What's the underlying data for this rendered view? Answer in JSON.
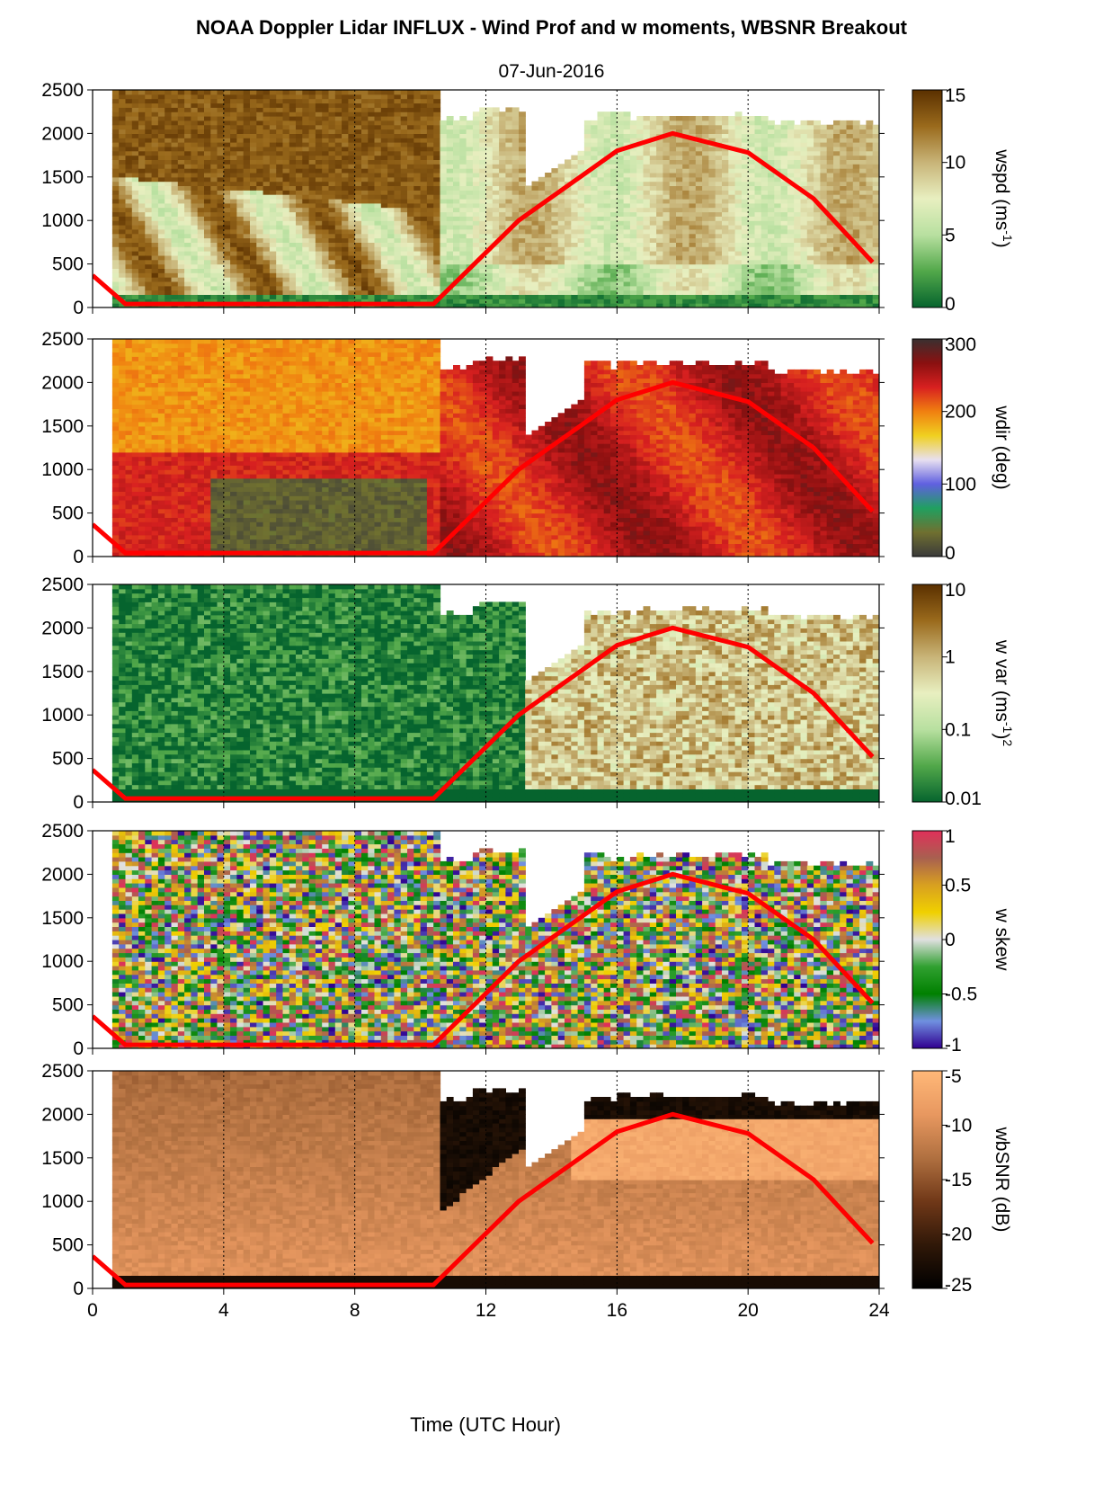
{
  "title": "NOAA Doppler Lidar INFLUX - Wind Prof and w moments, WBSNR Breakout",
  "subtitle": "07-Jun-2016",
  "chart_data": {
    "type": "heatmap",
    "xlabel": "Time (UTC Hour)",
    "xlim": [
      0,
      24
    ],
    "x_ticks": [
      "0",
      "4",
      "8",
      "12",
      "16",
      "20",
      "24"
    ],
    "y_ticks": [
      "0",
      "500",
      "1000",
      "1500",
      "2000",
      "2500"
    ],
    "ylim": [
      0,
      2500
    ],
    "grid": "dotted vertical lines every 4 hours",
    "overlay_line": {
      "color": "#ff0000",
      "description_points": [
        [
          0,
          370
        ],
        [
          1,
          40
        ],
        [
          10.4,
          40
        ],
        [
          13,
          1000
        ],
        [
          16,
          1800
        ],
        [
          17.7,
          2000
        ],
        [
          20,
          1780
        ],
        [
          22,
          1250
        ],
        [
          23.8,
          520
        ]
      ]
    },
    "panels": [
      {
        "colorbar_label": "wspd (ms",
        "colorbar_label_sup": "-1",
        "colorbar_label_end": ")",
        "colorbar_ticks": [
          "15",
          "10",
          "5",
          "0"
        ],
        "colormap": [
          "#5a3000",
          "#9a6a1c",
          "#c8b478",
          "#e8efc0",
          "#b8e0a0",
          "#52a84a",
          "#06642e"
        ]
      },
      {
        "colorbar_label": "wdir (deg)",
        "colorbar_label_sup": "",
        "colorbar_label_end": "",
        "colorbar_ticks": [
          "300",
          "200",
          "100",
          "0"
        ],
        "colormap": [
          "#3a3030",
          "#8a1010",
          "#d82020",
          "#f08010",
          "#f0d020",
          "#e8e0f0",
          "#6060e0",
          "#20a060",
          "#707030",
          "#3a3a3a"
        ]
      },
      {
        "colorbar_label": "w var (ms",
        "colorbar_label_sup": "-1",
        "colorbar_label_end": ")",
        "colorbar_label_sup2": "2",
        "colorbar_ticks": [
          "10",
          "1",
          "0.1",
          "0.01"
        ],
        "colormap": [
          "#5a3000",
          "#9a6a1c",
          "#c8b478",
          "#e8efc0",
          "#b8e0a0",
          "#52a84a",
          "#06642e"
        ]
      },
      {
        "colorbar_label": "w skew",
        "colorbar_label_sup": "",
        "colorbar_label_end": "",
        "colorbar_ticks": [
          "1",
          "0.5",
          "0",
          "-0.5",
          "-1"
        ],
        "colormap": [
          "#e0305a",
          "#a86050",
          "#d8a020",
          "#f0d000",
          "#e0e0e0",
          "#30a030",
          "#008000",
          "#7090e0",
          "#300090"
        ]
      },
      {
        "colorbar_label": "wbSNR (dB)",
        "colorbar_label_sup": "",
        "colorbar_label_end": "",
        "colorbar_ticks": [
          "-5",
          "-10",
          "-15",
          "-20",
          "-25"
        ],
        "colormap": [
          "#ffb878",
          "#e89860",
          "#b07040",
          "#703818",
          "#301808",
          "#000000"
        ]
      }
    ]
  }
}
